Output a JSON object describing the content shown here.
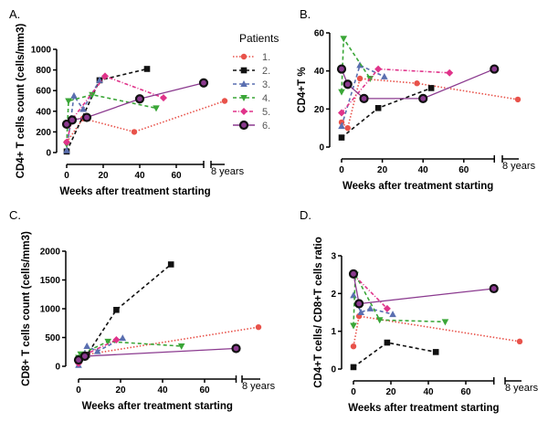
{
  "legend": {
    "title": "Patients",
    "entries": [
      "1.",
      "2.",
      "3.",
      "4.",
      "5.",
      "6."
    ],
    "placement": "right of panel A"
  },
  "series_styles": [
    {
      "color": "#e8524a",
      "marker": "circle",
      "dash": "dotted"
    },
    {
      "color": "#111111",
      "marker": "square",
      "dash": "dashed"
    },
    {
      "color": "#5a6fb0",
      "marker": "triangle-up",
      "dash": "dashed"
    },
    {
      "color": "#3aa637",
      "marker": "triangle-down",
      "dash": "dashed"
    },
    {
      "color": "#e0338a",
      "marker": "diamond",
      "dash": "dash-dot"
    },
    {
      "color": "#8b3a8f",
      "marker": "ringed-circle",
      "dash": "solid"
    }
  ],
  "chart_data": [
    {
      "panel": "A.",
      "type": "line",
      "xlabel": "Weeks after treatment starting",
      "ylabel": "CD4+ T cells count (cells/mm3)",
      "xlim": [
        0,
        75
      ],
      "x_ticks": [
        0,
        20,
        40,
        60
      ],
      "x_break_label": "8 years",
      "ylim": [
        0,
        1000
      ],
      "y_ticks": [
        0,
        200,
        400,
        600,
        800,
        1000
      ],
      "grid": false,
      "series": [
        {
          "name": "1.",
          "points": [
            [
              0,
              100
            ],
            [
              9,
              330
            ],
            [
              37,
              200
            ],
            [
              "8 years",
              500
            ]
          ]
        },
        {
          "name": "2.",
          "points": [
            [
              0,
              10
            ],
            [
              18,
              700
            ],
            [
              44,
              810
            ]
          ]
        },
        {
          "name": "3.",
          "points": [
            [
              0,
              20
            ],
            [
              4,
              550
            ],
            [
              9,
              420
            ],
            [
              18,
              700
            ]
          ]
        },
        {
          "name": "4.",
          "points": [
            [
              0,
              80
            ],
            [
              1,
              500
            ],
            [
              14,
              560
            ],
            [
              49,
              430
            ]
          ]
        },
        {
          "name": "5.",
          "points": [
            [
              0,
              100
            ],
            [
              3,
              320
            ],
            [
              21,
              740
            ],
            [
              53,
              530
            ]
          ]
        },
        {
          "name": "6.",
          "points": [
            [
              0,
              275
            ],
            [
              3,
              315
            ],
            [
              11,
              340
            ],
            [
              40,
              520
            ],
            [
              75,
              675
            ]
          ]
        }
      ]
    },
    {
      "panel": "B.",
      "type": "line",
      "xlabel": "Weeks after treatment starting",
      "ylabel": "CD4+T %",
      "xlim": [
        0,
        75
      ],
      "x_ticks": [
        0,
        20,
        40,
        60
      ],
      "x_break_label": "8 years",
      "ylim": [
        0,
        60
      ],
      "y_ticks": [
        0,
        20,
        40,
        60
      ],
      "grid": false,
      "series": [
        {
          "name": "1.",
          "points": [
            [
              0,
              13
            ],
            [
              3,
              10
            ],
            [
              9,
              36
            ],
            [
              37,
              33.5
            ],
            [
              "8 years",
              25
            ]
          ]
        },
        {
          "name": "2.",
          "points": [
            [
              0,
              5
            ],
            [
              18,
              20.5
            ],
            [
              44,
              31
            ]
          ]
        },
        {
          "name": "3.",
          "points": [
            [
              0,
              11
            ],
            [
              9,
              43
            ],
            [
              21,
              37
            ]
          ]
        },
        {
          "name": "4.",
          "points": [
            [
              0,
              29
            ],
            [
              1,
              57
            ],
            [
              14,
              36
            ]
          ]
        },
        {
          "name": "5.",
          "points": [
            [
              0,
              18
            ],
            [
              18,
              41
            ],
            [
              53,
              39
            ]
          ]
        },
        {
          "name": "6.",
          "points": [
            [
              0,
              41
            ],
            [
              3,
              33
            ],
            [
              11,
              25.5
            ],
            [
              40,
              25.5
            ],
            [
              75,
              41
            ]
          ]
        }
      ]
    },
    {
      "panel": "C.",
      "type": "line",
      "xlabel": "Weeks after treatment starting",
      "ylabel": "CD8+ T cells count (cells/mm3)",
      "xlim": [
        0,
        75
      ],
      "x_ticks": [
        0,
        20,
        40,
        60
      ],
      "x_break_label": "8 years",
      "ylim": [
        0,
        2000
      ],
      "y_ticks": [
        0,
        500,
        1000,
        1500,
        2000
      ],
      "grid": false,
      "series": [
        {
          "name": "1.",
          "points": [
            [
              0,
              100
            ],
            [
              3,
              200
            ],
            [
              "8 years",
              680
            ]
          ]
        },
        {
          "name": "2.",
          "points": [
            [
              0,
              120
            ],
            [
              4,
              200
            ],
            [
              18,
              980
            ],
            [
              44,
              1770
            ]
          ]
        },
        {
          "name": "3.",
          "points": [
            [
              0,
              20
            ],
            [
              4,
              350
            ],
            [
              9,
              260
            ],
            [
              21,
              490
            ]
          ]
        },
        {
          "name": "4.",
          "points": [
            [
              0,
              150
            ],
            [
              1,
              210
            ],
            [
              14,
              430
            ],
            [
              49,
              350
            ]
          ]
        },
        {
          "name": "5.",
          "points": [
            [
              0,
              50
            ],
            [
              3,
              200
            ],
            [
              18,
              460
            ]
          ]
        },
        {
          "name": "6.",
          "points": [
            [
              0,
              110
            ],
            [
              3,
              175
            ],
            [
              75,
              310
            ]
          ]
        }
      ]
    },
    {
      "panel": "D.",
      "type": "line",
      "xlabel": "Weeks after treatment starting",
      "ylabel": "CD4+T cells/ CD8+T cells ratio",
      "xlim": [
        0,
        75
      ],
      "x_ticks": [
        0,
        20,
        40,
        60
      ],
      "x_break_label": "8 years",
      "ylim": [
        0,
        3
      ],
      "y_ticks": [
        0,
        1,
        2,
        3
      ],
      "grid": false,
      "series": [
        {
          "name": "1.",
          "points": [
            [
              0,
              0.6
            ],
            [
              3,
              1.4
            ],
            [
              "8 years",
              0.73
            ]
          ]
        },
        {
          "name": "2.",
          "points": [
            [
              0,
              0.05
            ],
            [
              18,
              0.7
            ],
            [
              44,
              0.45
            ]
          ]
        },
        {
          "name": "3.",
          "points": [
            [
              0,
              1.95
            ],
            [
              4,
              1.5
            ],
            [
              9,
              1.6
            ],
            [
              21,
              1.45
            ]
          ]
        },
        {
          "name": "4.",
          "points": [
            [
              0,
              1.15
            ],
            [
              1,
              2.5
            ],
            [
              14,
              1.3
            ],
            [
              49,
              1.25
            ]
          ]
        },
        {
          "name": "5.",
          "points": [
            [
              0,
              2.5
            ],
            [
              18,
              1.6
            ]
          ]
        },
        {
          "name": "6.",
          "points": [
            [
              0,
              2.52
            ],
            [
              3,
              1.73
            ],
            [
              75,
              2.13
            ]
          ]
        }
      ]
    }
  ]
}
